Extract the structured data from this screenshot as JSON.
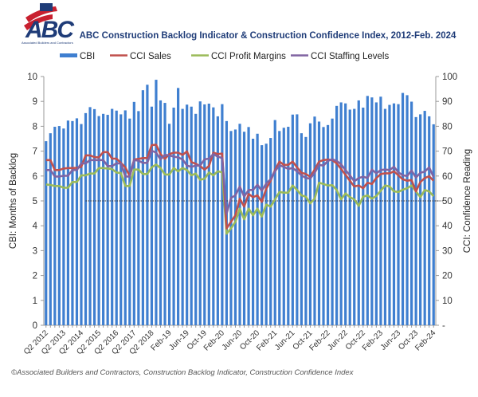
{
  "logo": {
    "text": "ABC",
    "subtext": "Associated Builders and Contractors"
  },
  "chart_data": {
    "type": "bar+line",
    "title": "ABC Construction Backlog Indicator & Construction Confidence Index, 2012-Feb. 2024",
    "ylabel_left": "CBI: Months of Backlog",
    "ylabel_right": "CCI: Confidence Reading",
    "ylim_left": [
      0,
      10
    ],
    "ylim_right": [
      0,
      100
    ],
    "y_ticks_left": [
      "0",
      "1",
      "2",
      "3",
      "4",
      "5",
      "6",
      "7",
      "8",
      "9",
      "10"
    ],
    "y_ticks_right": [
      "-",
      "10",
      "20",
      "30",
      "40",
      "50",
      "60",
      "70",
      "80",
      "90",
      "100"
    ],
    "reference_line": {
      "value_right": 50,
      "style": "dotted"
    },
    "x_tick_labels": [
      "Q2 2012",
      "Q2 2013",
      "Q2 2014",
      "Q2 2015",
      "Q2 2016",
      "Q2 2017",
      "Q2 2018",
      "Feb-19",
      "Jun-19",
      "Oct-19",
      "Feb-20",
      "Jun-20",
      "Oct-20",
      "Feb-21",
      "Jun-21",
      "Oct-21",
      "Feb-22",
      "Jun-22",
      "Oct-22",
      "Feb-23",
      "Jun-23",
      "Oct-23",
      "Feb-24"
    ],
    "x_tick_every": 4,
    "legend_position": "top",
    "grid": false,
    "series": [
      {
        "name": "CBI",
        "type": "bar",
        "axis": "left",
        "color": "#3f7fd0",
        "values": [
          7.4,
          7.72,
          7.98,
          8.01,
          7.91,
          8.23,
          8.21,
          8.32,
          8.09,
          8.53,
          8.77,
          8.69,
          8.41,
          8.5,
          8.46,
          8.7,
          8.63,
          8.48,
          8.64,
          8.31,
          8.98,
          8.61,
          9.45,
          9.67,
          8.79,
          9.87,
          9.04,
          8.94,
          8.1,
          8.75,
          9.54,
          8.7,
          8.87,
          8.79,
          8.5,
          9.0,
          8.88,
          8.91,
          8.76,
          8.4,
          8.89,
          8.21,
          7.81,
          7.87,
          8.1,
          7.78,
          7.97,
          7.5,
          7.7,
          7.24,
          7.3,
          7.53,
          8.25,
          7.81,
          7.94,
          7.98,
          8.47,
          8.48,
          7.72,
          7.57,
          8.12,
          8.39,
          8.19,
          7.97,
          8.05,
          8.31,
          8.82,
          8.96,
          8.92,
          8.67,
          8.7,
          9.04,
          8.75,
          9.22,
          9.16,
          8.96,
          9.19,
          8.7,
          8.86,
          8.92,
          8.89,
          9.34,
          9.25,
          8.99,
          8.37,
          8.48,
          8.62,
          8.4,
          8.08
        ]
      },
      {
        "name": "CCI Sales",
        "type": "line",
        "axis": "right",
        "color": "#c0504d",
        "values": [
          66.4,
          66.4,
          62.4,
          62.4,
          63.0,
          63.2,
          63.2,
          63.3,
          63.7,
          68.3,
          68.3,
          67.6,
          67.5,
          69.6,
          69.6,
          67.0,
          67.0,
          65.3,
          63.5,
          60.0,
          66.6,
          66.9,
          67.2,
          67.2,
          72.4,
          72.6,
          68.8,
          66.9,
          68.8,
          69.4,
          69.4,
          68.5,
          69.9,
          65.6,
          64.9,
          64.0,
          62.6,
          64.0,
          69.4,
          68.8,
          69.0,
          38.9,
          41.6,
          44.2,
          50.9,
          47.7,
          52.8,
          51.5,
          52.2,
          49.6,
          54.9,
          58.1,
          62.4,
          65.8,
          64.5,
          64.5,
          65.8,
          63.5,
          61.3,
          60.8,
          59.7,
          62.6,
          65.8,
          66.4,
          66.6,
          66.4,
          65.1,
          62.9,
          60.5,
          58.1,
          55.8,
          56.2,
          55.1,
          57.3,
          56.8,
          59.2,
          60.8,
          61.1,
          61.1,
          61.9,
          60.3,
          58.7,
          58.1,
          58.4,
          53.8,
          57.6,
          59.2,
          59.9,
          58.1
        ]
      },
      {
        "name": "CCI Profit Margins",
        "type": "line",
        "axis": "right",
        "color": "#9bbb59",
        "values": [
          56.6,
          56.4,
          56.0,
          56.0,
          55.3,
          55.3,
          57.6,
          57.6,
          60.3,
          60.3,
          61.0,
          61.0,
          63.2,
          63.2,
          63.0,
          62.8,
          61.4,
          61.2,
          56.0,
          56.0,
          62.6,
          62.6,
          60.8,
          60.8,
          63.5,
          64.6,
          63.2,
          60.6,
          60.6,
          63.2,
          61.9,
          63.2,
          62.4,
          60.3,
          61.0,
          58.5,
          58.9,
          61.4,
          60.3,
          61.9,
          61.5,
          36.8,
          38.9,
          41.6,
          46.9,
          42.6,
          46.9,
          44.2,
          46.9,
          43.7,
          48.5,
          47.7,
          50.6,
          53.6,
          53.3,
          53.3,
          56.2,
          54.4,
          52.2,
          51.7,
          49.0,
          50.9,
          57.3,
          56.8,
          56.2,
          56.3,
          54.4,
          50.6,
          53.0,
          51.5,
          50.6,
          48.0,
          51.7,
          52.2,
          50.9,
          52.0,
          54.1,
          56.2,
          55.8,
          53.8,
          53.6,
          54.5,
          55.1,
          56.2,
          53.8,
          51.5,
          54.4,
          53.8,
          51.9
        ]
      },
      {
        "name": "CCI Staffing Levels",
        "type": "line",
        "axis": "right",
        "color": "#8064a2",
        "values": [
          62.4,
          62.4,
          59.8,
          59.8,
          60.1,
          60.1,
          62.4,
          62.4,
          65.1,
          65.1,
          66.4,
          66.4,
          66.4,
          66.4,
          64.0,
          64.0,
          65.1,
          65.1,
          59.8,
          59.8,
          66.4,
          66.2,
          65.3,
          65.3,
          70.2,
          69.4,
          66.7,
          68.5,
          68.3,
          67.8,
          67.5,
          66.7,
          64.2,
          63.7,
          64.2,
          64.2,
          66.7,
          67.0,
          68.8,
          67.8,
          67.2,
          44.8,
          51.2,
          52.2,
          55.8,
          51.7,
          54.4,
          54.4,
          56.5,
          54.1,
          57.0,
          58.7,
          61.9,
          64.3,
          63.7,
          62.9,
          63.2,
          61.9,
          60.3,
          59.2,
          59.0,
          61.3,
          64.5,
          64.2,
          66.1,
          66.7,
          66.1,
          64.7,
          62.4,
          60.3,
          57.9,
          59.2,
          59.7,
          59.2,
          62.6,
          61.1,
          62.4,
          62.6,
          62.4,
          63.7,
          61.5,
          60.3,
          60.0,
          62.2,
          59.4,
          61.3,
          61.8,
          63.5,
          59.6
        ]
      }
    ]
  },
  "footnote": "©Associated Builders and Contractors, Construction Backlog Indicator, Construction Confidence Index"
}
